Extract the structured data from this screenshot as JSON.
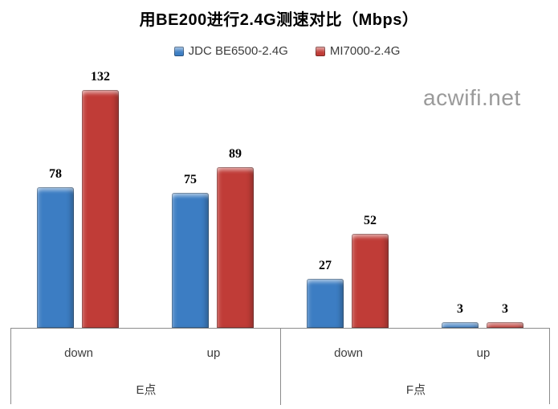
{
  "title": "用BE200进行2.4G测速对比（Mbps）",
  "watermark": "acwifi.net",
  "legend": [
    {
      "label": "JDC BE6500-2.4G",
      "color": "#3c7dc3"
    },
    {
      "label": "MI7000-2.4G",
      "color": "#c03c37"
    }
  ],
  "colors": {
    "blue_series": "#3c7dc3",
    "red_series": "#c03c37",
    "axis_line": "#8c8c8c",
    "watermark_gray": "#9a9a9a"
  },
  "chart_data": {
    "type": "bar",
    "title": "用BE200进行2.4G测速对比（Mbps）",
    "group_labels": [
      "E点",
      "F点"
    ],
    "categories": [
      "down",
      "up",
      "down",
      "up"
    ],
    "series": [
      {
        "name": "JDC BE6500-2.4G",
        "color": "#3c7dc3",
        "values": [
          78,
          75,
          27,
          3
        ]
      },
      {
        "name": "MI7000-2.4G",
        "color": "#c03c37",
        "values": [
          132,
          89,
          52,
          3
        ]
      }
    ],
    "value_labels_shown": true,
    "ylim": [
      0,
      140
    ],
    "grid": false,
    "legend_position": "top",
    "unit": "Mbps"
  }
}
